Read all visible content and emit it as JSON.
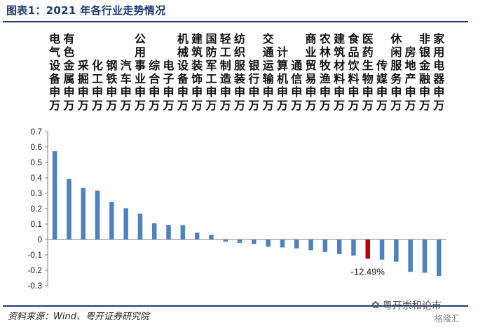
{
  "figure": {
    "title": "图表1：2021 年各行业走势情况",
    "source": "资料来源：Wind、粤开证券研究院",
    "watermark": "粤开崇和论市",
    "watermark_sub": "格隆汇"
  },
  "chart_data": {
    "type": "bar",
    "title": "",
    "xlabel": "",
    "ylabel": "",
    "ylim": [
      -0.3,
      0.7
    ],
    "yticks": [
      -0.3,
      -0.2,
      -0.1,
      0,
      0.1,
      0.2,
      0.3,
      0.4,
      0.5,
      0.6,
      0.7
    ],
    "ytick_labels": [
      "-0.3",
      "-0.2",
      "-0.1",
      "0",
      "0.1",
      "0.2",
      "0.3",
      "0.4",
      "0.5",
      "0.6",
      "0.7"
    ],
    "grid": false,
    "legend": "none",
    "categories": [
      "电气设备申万",
      "有色金属申万",
      "采掘申万",
      "化工申万",
      "钢铁申万",
      "汽车申万",
      "公用事业申万",
      "综合申万",
      "电子申万",
      "机械设备申万",
      "建筑装饰申万",
      "国防军工申万",
      "轻工制造申万",
      "纺织服装申万",
      "银行申万",
      "交通运输申万",
      "计算机申万",
      "通信申万",
      "商业贸易申万",
      "农林牧渔申万",
      "建筑材料申万",
      "食品饮料申万",
      "医药生物申万",
      "传媒申万",
      "休闲服务申万",
      "房地产申万",
      "非银金融申万",
      "家用电器申万"
    ],
    "category_rows": [
      [
        "电",
        "有",
        "",
        "",
        "",
        "",
        "公",
        "",
        "",
        "机",
        "建",
        "国",
        "轻",
        "纺",
        "",
        "交",
        "",
        "",
        "商",
        "农",
        "建",
        "食",
        "医",
        "",
        "休",
        "",
        "非",
        "家"
      ],
      [
        "气",
        "色",
        "",
        "",
        "",
        "",
        "用",
        "",
        "",
        "械",
        "筑",
        "防",
        "工",
        "织",
        "",
        "通",
        "计",
        "",
        "业",
        "林",
        "筑",
        "品",
        "药",
        "",
        "闲",
        "房",
        "银",
        "用"
      ],
      [
        "设",
        "金",
        "采",
        "化",
        "钢",
        "汽",
        "事",
        "综",
        "电",
        "设",
        "装",
        "军",
        "制",
        "服",
        "银",
        "运",
        "算",
        "通",
        "贸",
        "牧",
        "材",
        "饮",
        "生",
        "传",
        "服",
        "地",
        "金",
        "电"
      ],
      [
        "备",
        "属",
        "掘",
        "工",
        "铁",
        "车",
        "业",
        "合",
        "子",
        "备",
        "饰",
        "工",
        "造",
        "装",
        "行",
        "输",
        "机",
        "信",
        "易",
        "渔",
        "料",
        "料",
        "物",
        "媒",
        "务",
        "产",
        "融",
        "器"
      ],
      [
        "申",
        "申",
        "申",
        "申",
        "申",
        "申",
        "申",
        "申",
        "申",
        "申",
        "申",
        "申",
        "申",
        "申",
        "申",
        "申",
        "申",
        "申",
        "申",
        "申",
        "申",
        "申",
        "申",
        "申",
        "申",
        "申",
        "申",
        "申"
      ],
      [
        "万",
        "万",
        "万",
        "万",
        "万",
        "万",
        "万",
        "万",
        "万",
        "万",
        "万",
        "万",
        "万",
        "万",
        "万",
        "万",
        "万",
        "万",
        "万",
        "万",
        "万",
        "万",
        "万",
        "万",
        "万",
        "万",
        "万",
        "万"
      ]
    ],
    "values": [
      0.573,
      0.393,
      0.335,
      0.317,
      0.244,
      0.203,
      0.168,
      0.105,
      0.095,
      0.093,
      0.044,
      0.03,
      -0.014,
      -0.022,
      -0.03,
      -0.047,
      -0.052,
      -0.058,
      -0.07,
      -0.081,
      -0.095,
      -0.104,
      -0.1249,
      -0.131,
      -0.144,
      -0.21,
      -0.216,
      -0.236
    ],
    "highlight_index": 22,
    "bar_color": "#4f81bd",
    "highlight_color": "#c00000",
    "annotation": {
      "text": "-12.49%",
      "category_index": 22
    }
  }
}
